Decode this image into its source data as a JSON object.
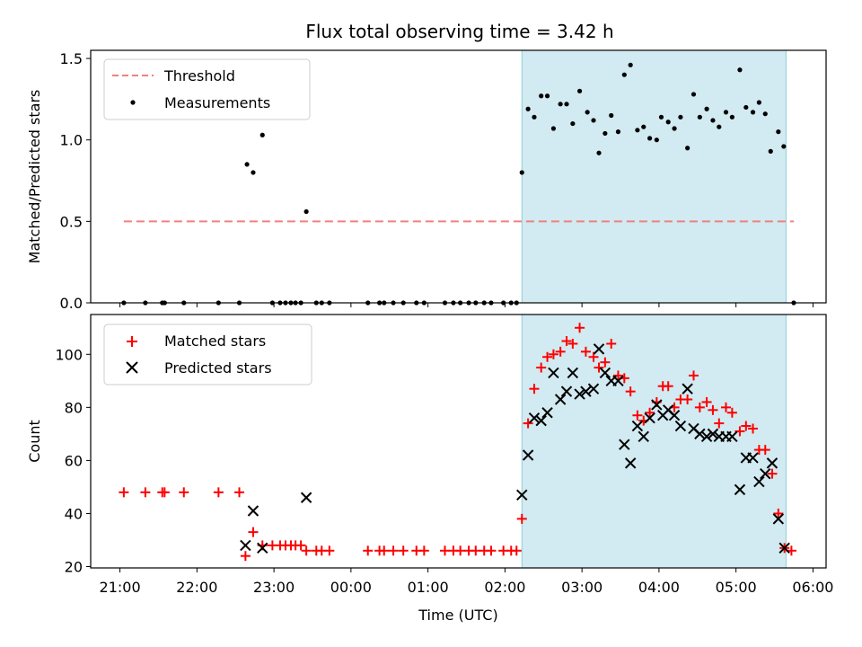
{
  "chart_data": {
    "title": "Flux total observing time = 3.42 h",
    "xlabel": "Time (UTC)",
    "x_ticks": [
      "21:00",
      "22:00",
      "23:00",
      "00:00",
      "01:00",
      "02:00",
      "03:00",
      "04:00",
      "05:00",
      "06:00"
    ],
    "x_range_hours": [
      20.62,
      30.17
    ],
    "shaded_interval_hours": [
      26.22,
      29.65
    ],
    "shade_color": "#add8e6",
    "panels": [
      {
        "type": "scatter",
        "ylabel": "Matched/Predicted stars",
        "ylim": [
          0,
          1.55
        ],
        "y_ticks": [
          0,
          0.5,
          1.0,
          1.5
        ],
        "y_tick_labels": [
          "0.0",
          "0.5",
          "1.0",
          "1.5"
        ],
        "legend": {
          "placement": "top-left",
          "threshold_label": "Threshold",
          "measurements_label": "Measurements"
        },
        "threshold": {
          "value": 0.5,
          "x_range_hours": [
            21.05,
            29.75
          ],
          "color": "#f08080"
        },
        "measurements": [
          [
            21.05,
            0
          ],
          [
            21.33,
            0
          ],
          [
            21.55,
            0
          ],
          [
            21.58,
            0
          ],
          [
            21.83,
            0
          ],
          [
            22.28,
            0
          ],
          [
            22.55,
            0
          ],
          [
            22.65,
            0.85
          ],
          [
            22.73,
            0.8
          ],
          [
            22.85,
            1.03
          ],
          [
            22.98,
            0
          ],
          [
            23.08,
            0
          ],
          [
            23.15,
            0
          ],
          [
            23.22,
            0
          ],
          [
            23.28,
            0
          ],
          [
            23.35,
            0
          ],
          [
            23.42,
            0.56
          ],
          [
            23.55,
            0
          ],
          [
            23.62,
            0
          ],
          [
            23.72,
            0
          ],
          [
            24.22,
            0
          ],
          [
            24.37,
            0
          ],
          [
            24.43,
            0
          ],
          [
            24.55,
            0
          ],
          [
            24.68,
            0
          ],
          [
            24.85,
            0
          ],
          [
            24.95,
            0
          ],
          [
            25.22,
            0
          ],
          [
            25.33,
            0
          ],
          [
            25.42,
            0
          ],
          [
            25.53,
            0
          ],
          [
            25.62,
            0
          ],
          [
            25.73,
            0
          ],
          [
            25.82,
            0
          ],
          [
            25.98,
            0
          ],
          [
            26.08,
            0
          ],
          [
            26.15,
            0
          ],
          [
            26.22,
            0.8
          ],
          [
            26.3,
            1.19
          ],
          [
            26.38,
            1.14
          ],
          [
            26.47,
            1.27
          ],
          [
            26.55,
            1.27
          ],
          [
            26.63,
            1.07
          ],
          [
            26.72,
            1.22
          ],
          [
            26.8,
            1.22
          ],
          [
            26.88,
            1.1
          ],
          [
            26.97,
            1.3
          ],
          [
            27.07,
            1.17
          ],
          [
            27.15,
            1.12
          ],
          [
            27.22,
            0.92
          ],
          [
            27.3,
            1.04
          ],
          [
            27.38,
            1.15
          ],
          [
            27.47,
            1.05
          ],
          [
            27.55,
            1.4
          ],
          [
            27.63,
            1.46
          ],
          [
            27.72,
            1.06
          ],
          [
            27.8,
            1.08
          ],
          [
            27.88,
            1.01
          ],
          [
            27.97,
            1.0
          ],
          [
            28.03,
            1.14
          ],
          [
            28.12,
            1.11
          ],
          [
            28.2,
            1.07
          ],
          [
            28.28,
            1.14
          ],
          [
            28.37,
            0.95
          ],
          [
            28.45,
            1.28
          ],
          [
            28.53,
            1.14
          ],
          [
            28.62,
            1.19
          ],
          [
            28.7,
            1.12
          ],
          [
            28.78,
            1.08
          ],
          [
            28.87,
            1.17
          ],
          [
            28.95,
            1.14
          ],
          [
            29.05,
            1.43
          ],
          [
            29.13,
            1.2
          ],
          [
            29.22,
            1.17
          ],
          [
            29.3,
            1.23
          ],
          [
            29.38,
            1.16
          ],
          [
            29.45,
            0.93
          ],
          [
            29.55,
            1.05
          ],
          [
            29.62,
            0.96
          ],
          [
            29.75,
            0
          ]
        ]
      },
      {
        "type": "scatter",
        "ylabel": "Count",
        "ylim": [
          19.5,
          115
        ],
        "y_ticks": [
          20,
          40,
          60,
          80,
          100
        ],
        "y_tick_labels": [
          "20",
          "40",
          "60",
          "80",
          "100"
        ],
        "legend": {
          "placement": "top-left",
          "matched_label": "Matched stars",
          "predicted_label": "Predicted stars"
        },
        "series": [
          {
            "name": "Matched stars",
            "marker": "plus",
            "color": "#ff0000",
            "points": [
              [
                21.05,
                48
              ],
              [
                21.33,
                48
              ],
              [
                21.55,
                48
              ],
              [
                21.58,
                48
              ],
              [
                21.83,
                48
              ],
              [
                22.28,
                48
              ],
              [
                22.55,
                48
              ],
              [
                22.63,
                24
              ],
              [
                22.73,
                33
              ],
              [
                22.85,
                28
              ],
              [
                22.98,
                28
              ],
              [
                23.08,
                28
              ],
              [
                23.15,
                28
              ],
              [
                23.22,
                28
              ],
              [
                23.28,
                28
              ],
              [
                23.35,
                28
              ],
              [
                23.42,
                26
              ],
              [
                23.55,
                26
              ],
              [
                23.62,
                26
              ],
              [
                23.72,
                26
              ],
              [
                24.22,
                26
              ],
              [
                24.37,
                26
              ],
              [
                24.43,
                26
              ],
              [
                24.55,
                26
              ],
              [
                24.68,
                26
              ],
              [
                24.85,
                26
              ],
              [
                24.95,
                26
              ],
              [
                25.22,
                26
              ],
              [
                25.33,
                26
              ],
              [
                25.42,
                26
              ],
              [
                25.53,
                26
              ],
              [
                25.62,
                26
              ],
              [
                25.73,
                26
              ],
              [
                25.82,
                26
              ],
              [
                25.98,
                26
              ],
              [
                26.08,
                26
              ],
              [
                26.15,
                26
              ],
              [
                26.22,
                38
              ],
              [
                26.3,
                74
              ],
              [
                26.38,
                87
              ],
              [
                26.47,
                95
              ],
              [
                26.55,
                99
              ],
              [
                26.63,
                100
              ],
              [
                26.72,
                101
              ],
              [
                26.8,
                105
              ],
              [
                26.88,
                104
              ],
              [
                26.97,
                110
              ],
              [
                27.05,
                101
              ],
              [
                27.15,
                99
              ],
              [
                27.22,
                95
              ],
              [
                27.3,
                97
              ],
              [
                27.38,
                104
              ],
              [
                27.47,
                92
              ],
              [
                27.55,
                91
              ],
              [
                27.63,
                86
              ],
              [
                27.72,
                77
              ],
              [
                27.8,
                75
              ],
              [
                27.88,
                78
              ],
              [
                27.97,
                82
              ],
              [
                28.05,
                88
              ],
              [
                28.12,
                88
              ],
              [
                28.2,
                80
              ],
              [
                28.28,
                83
              ],
              [
                28.37,
                83
              ],
              [
                28.45,
                92
              ],
              [
                28.53,
                80
              ],
              [
                28.62,
                82
              ],
              [
                28.7,
                79
              ],
              [
                28.78,
                74
              ],
              [
                28.87,
                80
              ],
              [
                28.95,
                78
              ],
              [
                29.05,
                71
              ],
              [
                29.13,
                73
              ],
              [
                29.22,
                72
              ],
              [
                29.3,
                64
              ],
              [
                29.38,
                64
              ],
              [
                29.47,
                55
              ],
              [
                29.55,
                40
              ],
              [
                29.63,
                27
              ],
              [
                29.72,
                26
              ]
            ]
          },
          {
            "name": "Predicted stars",
            "marker": "x",
            "color": "#000000",
            "points": [
              [
                22.63,
                28
              ],
              [
                22.73,
                41
              ],
              [
                22.85,
                27
              ],
              [
                23.42,
                46
              ],
              [
                26.22,
                47
              ],
              [
                26.3,
                62
              ],
              [
                26.38,
                76
              ],
              [
                26.47,
                75
              ],
              [
                26.55,
                78
              ],
              [
                26.63,
                93
              ],
              [
                26.72,
                83
              ],
              [
                26.8,
                86
              ],
              [
                26.88,
                93
              ],
              [
                26.97,
                85
              ],
              [
                27.05,
                86
              ],
              [
                27.15,
                87
              ],
              [
                27.22,
                102
              ],
              [
                27.3,
                93
              ],
              [
                27.38,
                90
              ],
              [
                27.47,
                90
              ],
              [
                27.55,
                66
              ],
              [
                27.63,
                59
              ],
              [
                27.72,
                73
              ],
              [
                27.8,
                69
              ],
              [
                27.88,
                76
              ],
              [
                27.97,
                81
              ],
              [
                28.05,
                77
              ],
              [
                28.12,
                79
              ],
              [
                28.2,
                77
              ],
              [
                28.28,
                73
              ],
              [
                28.37,
                87
              ],
              [
                28.45,
                72
              ],
              [
                28.53,
                70
              ],
              [
                28.62,
                69
              ],
              [
                28.7,
                70
              ],
              [
                28.78,
                69
              ],
              [
                28.87,
                69
              ],
              [
                28.95,
                69
              ],
              [
                29.05,
                49
              ],
              [
                29.13,
                61
              ],
              [
                29.22,
                61
              ],
              [
                29.3,
                52
              ],
              [
                29.38,
                55
              ],
              [
                29.47,
                59
              ],
              [
                29.55,
                38
              ],
              [
                29.63,
                27
              ]
            ]
          }
        ]
      }
    ]
  }
}
